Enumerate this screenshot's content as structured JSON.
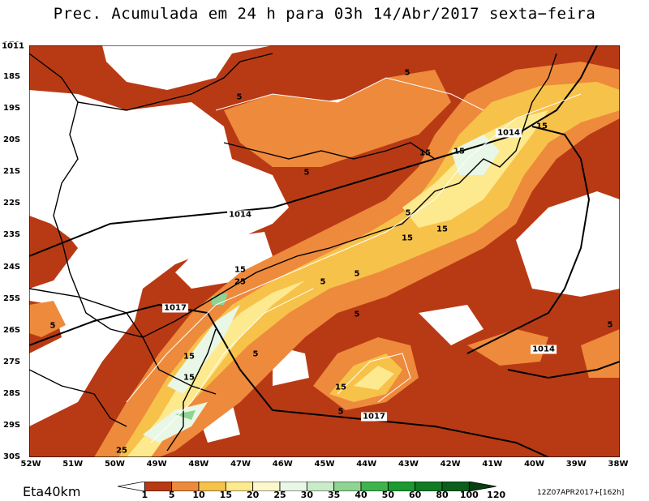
{
  "title": "Prec. Acumulada em 24 h para 03h 14/Abr/2017 sexta−feira",
  "model_label": "Eta40km",
  "run_label": "12Z07APR2017+[162h]",
  "lat_labels": [
    "17S",
    "18S",
    "19S",
    "20S",
    "21S",
    "22S",
    "23S",
    "24S",
    "25S",
    "26S",
    "27S",
    "28S",
    "29S",
    "30S"
  ],
  "lon_labels": [
    "52W",
    "51W",
    "50W",
    "49W",
    "48W",
    "47W",
    "46W",
    "45W",
    "44W",
    "43W",
    "42W",
    "41W",
    "40W",
    "39W",
    "38W"
  ],
  "isobar_labels": [
    "1014",
    "1014",
    "1017",
    "1017",
    "1014",
    "1011"
  ],
  "contour_labels": [
    "5",
    "5",
    "5",
    "5",
    "5",
    "5",
    "5",
    "5",
    "5",
    "5",
    "5",
    "15",
    "15",
    "15",
    "15",
    "15",
    "15",
    "15",
    "15",
    "15",
    "25",
    "25"
  ],
  "colorbar": {
    "levels": [
      "1",
      "5",
      "10",
      "15",
      "20",
      "25",
      "30",
      "35",
      "40",
      "50",
      "60",
      "80",
      "100",
      "120"
    ],
    "colors": [
      "#ffffff",
      "#b83a14",
      "#ee8a3c",
      "#f7c24a",
      "#fde98e",
      "#fdf7cc",
      "#e9f7e6",
      "#c9ebc9",
      "#8fd492",
      "#3fb34d",
      "#1a9a30",
      "#117a24",
      "#0c5e1c",
      "#063f10"
    ]
  }
}
